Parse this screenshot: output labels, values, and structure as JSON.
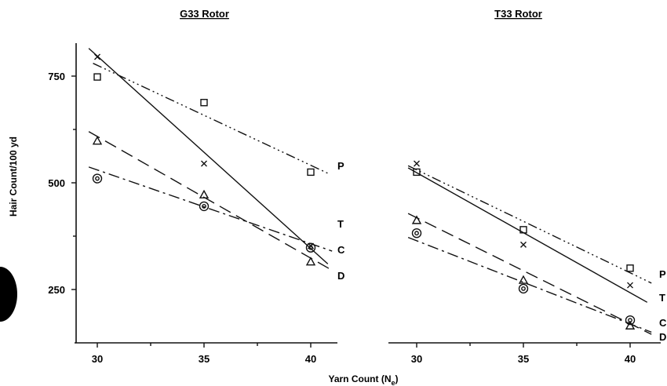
{
  "chart_data": [
    {
      "type": "scatter",
      "title": "G33 Rotor",
      "xlabel": "Yarn Count (N_e)",
      "ylabel": "Hair Count/100 yd",
      "x_ticks": [
        30,
        35,
        40
      ],
      "y_ticks": [
        250,
        500,
        750
      ],
      "xlim": [
        29,
        41.5
      ],
      "ylim": [
        130,
        830
      ],
      "series": [
        {
          "name": "P",
          "marker": "square",
          "dash": "12 4 2 4 2 4 2 4",
          "x": [
            30,
            35,
            40
          ],
          "y": [
            748,
            688,
            525
          ],
          "fit": {
            "x": [
              29.8,
              40.9
            ],
            "y": [
              780,
              520
            ]
          }
        },
        {
          "name": "T",
          "marker": "cross",
          "dash": "",
          "x": [
            30,
            35,
            40
          ],
          "y": [
            795,
            545,
            352
          ],
          "fit": {
            "x": [
              29.6,
              40.8
            ],
            "y": [
              815,
              310
            ]
          }
        },
        {
          "name": "C",
          "marker": "circle",
          "dash": "14 5 3 5",
          "x": [
            30,
            35,
            40
          ],
          "y": [
            510,
            445,
            348
          ],
          "fit": {
            "x": [
              29.6,
              41.0
            ],
            "y": [
              537,
              340
            ]
          }
        },
        {
          "name": "D",
          "marker": "triangle",
          "dash": "16 8",
          "x": [
            30,
            35,
            40
          ],
          "y": [
            598,
            472,
            315
          ],
          "fit": {
            "x": [
              29.6,
              41.0
            ],
            "y": [
              620,
              295
            ]
          }
        }
      ]
    },
    {
      "type": "scatter",
      "title": "T33 Rotor",
      "xlabel": "",
      "ylabel": "",
      "x_ticks": [
        30,
        35,
        40
      ],
      "y_ticks": [],
      "xlim": [
        29,
        41.5
      ],
      "ylim": [
        130,
        830
      ],
      "series": [
        {
          "name": "P",
          "marker": "square",
          "dash": "12 4 2 4 2 4 2 4",
          "x": [
            30,
            35,
            40
          ],
          "y": [
            525,
            390,
            300
          ],
          "fit": {
            "x": [
              29.6,
              41.0
            ],
            "y": [
              540,
              265
            ]
          }
        },
        {
          "name": "T",
          "marker": "cross",
          "dash": "",
          "x": [
            30,
            35,
            40
          ],
          "y": [
            545,
            355,
            260
          ],
          "fit": {
            "x": [
              29.6,
              40.8
            ],
            "y": [
              535,
              220
            ]
          }
        },
        {
          "name": "C",
          "marker": "circle",
          "dash": "14 5 3 5",
          "x": [
            30,
            35,
            40
          ],
          "y": [
            382,
            252,
            178
          ],
          "fit": {
            "x": [
              29.6,
              41.0
            ],
            "y": [
              372,
              150
            ]
          }
        },
        {
          "name": "D",
          "marker": "triangle",
          "dash": "16 8",
          "x": [
            30,
            35,
            40
          ],
          "y": [
            412,
            272,
            165
          ],
          "fit": {
            "x": [
              29.6,
              41.0
            ],
            "y": [
              428,
              145
            ]
          }
        }
      ]
    }
  ]
}
